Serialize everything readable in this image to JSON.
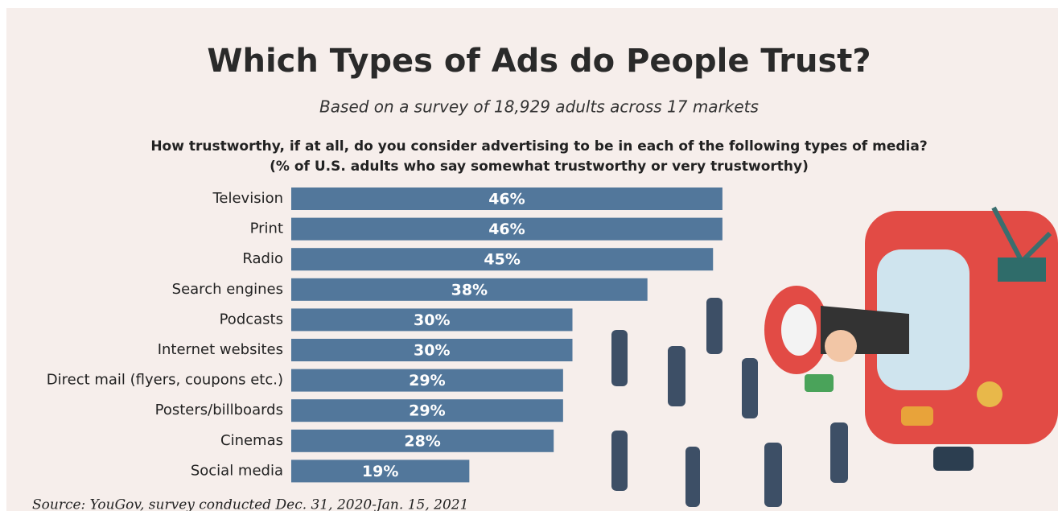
{
  "chart_data": {
    "type": "bar",
    "orientation": "horizontal",
    "title": "Which Types of Ads do People Trust?",
    "subtitle": "Based on a survey of 18,929 adults across 17 markets",
    "question": [
      "How trustworthy, if at all, do you consider advertising to be in each of the following types of media?",
      "(% of U.S. adults who say somewhat trustworthy or very trustworthy)"
    ],
    "categories": [
      "Television",
      "Print",
      "Radio",
      "Search engines",
      "Podcasts",
      "Internet websites",
      "Direct mail (flyers, coupons etc.)",
      "Posters/billboards",
      "Cinemas",
      "Social media"
    ],
    "values": [
      46,
      46,
      45,
      38,
      30,
      30,
      29,
      29,
      28,
      19
    ],
    "value_labels": [
      "46%",
      "46%",
      "45%",
      "38%",
      "30%",
      "30%",
      "29%",
      "29%",
      "28%",
      "19%"
    ],
    "color": "#52779b",
    "source": "Source: YouGov, survey conducted Dec. 31, 2020-Jan. 15, 2021"
  }
}
